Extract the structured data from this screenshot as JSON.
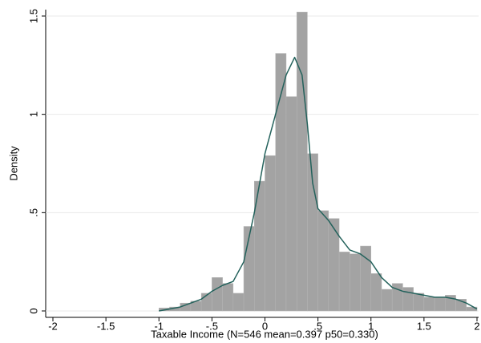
{
  "chart_data": {
    "type": "histogram",
    "xlabel": "Taxable Income (N=546 mean=0.397 p50=0.330)",
    "ylabel": "Density",
    "bins": [
      -1.0,
      -0.9,
      -0.8,
      -0.7,
      -0.6,
      -0.5,
      -0.4,
      -0.3,
      -0.2,
      -0.1,
      0.0,
      0.1,
      0.2,
      0.3,
      0.4,
      0.5,
      0.6,
      0.7,
      0.8,
      0.9,
      1.0,
      1.1,
      1.2,
      1.3,
      1.4,
      1.5,
      1.6,
      1.7,
      1.8,
      1.9,
      2.0
    ],
    "values": [
      0.015,
      0.02,
      0.04,
      0.05,
      0.09,
      0.17,
      0.14,
      0.09,
      0.43,
      0.66,
      0.79,
      1.31,
      1.09,
      1.52,
      0.8,
      0.51,
      0.47,
      0.3,
      0.29,
      0.33,
      0.19,
      0.11,
      0.14,
      0.12,
      0.09,
      0.07,
      0.07,
      0.08,
      0.06,
      0.02
    ],
    "color": "#a3a3a3",
    "density_line": {
      "x": [
        -1.0,
        -0.8,
        -0.6,
        -0.5,
        -0.4,
        -0.3,
        -0.2,
        -0.1,
        0.0,
        0.1,
        0.2,
        0.28,
        0.35,
        0.4,
        0.45,
        0.5,
        0.6,
        0.7,
        0.8,
        0.9,
        1.0,
        1.1,
        1.2,
        1.3,
        1.4,
        1.5,
        1.6,
        1.7,
        1.8,
        1.9,
        2.0
      ],
      "values": [
        0.0,
        0.02,
        0.06,
        0.1,
        0.13,
        0.15,
        0.25,
        0.5,
        0.8,
        1.0,
        1.2,
        1.29,
        1.2,
        0.95,
        0.65,
        0.52,
        0.46,
        0.38,
        0.31,
        0.29,
        0.25,
        0.17,
        0.12,
        0.1,
        0.09,
        0.08,
        0.07,
        0.07,
        0.06,
        0.04,
        0.01
      ],
      "color": "#24625c"
    },
    "xlim": [
      -2,
      2
    ],
    "xticks": [
      -2,
      -1.5,
      -1,
      {
        "value": -0.5,
        "label": "-.5"
      },
      0,
      {
        "value": 0.5,
        "label": ".5"
      },
      1,
      1.5,
      2
    ],
    "ylim": [
      0,
      1.5
    ],
    "yticks": [
      0,
      {
        "value": 0.5,
        "label": ".5"
      },
      1,
      1.5
    ],
    "grid": true
  }
}
